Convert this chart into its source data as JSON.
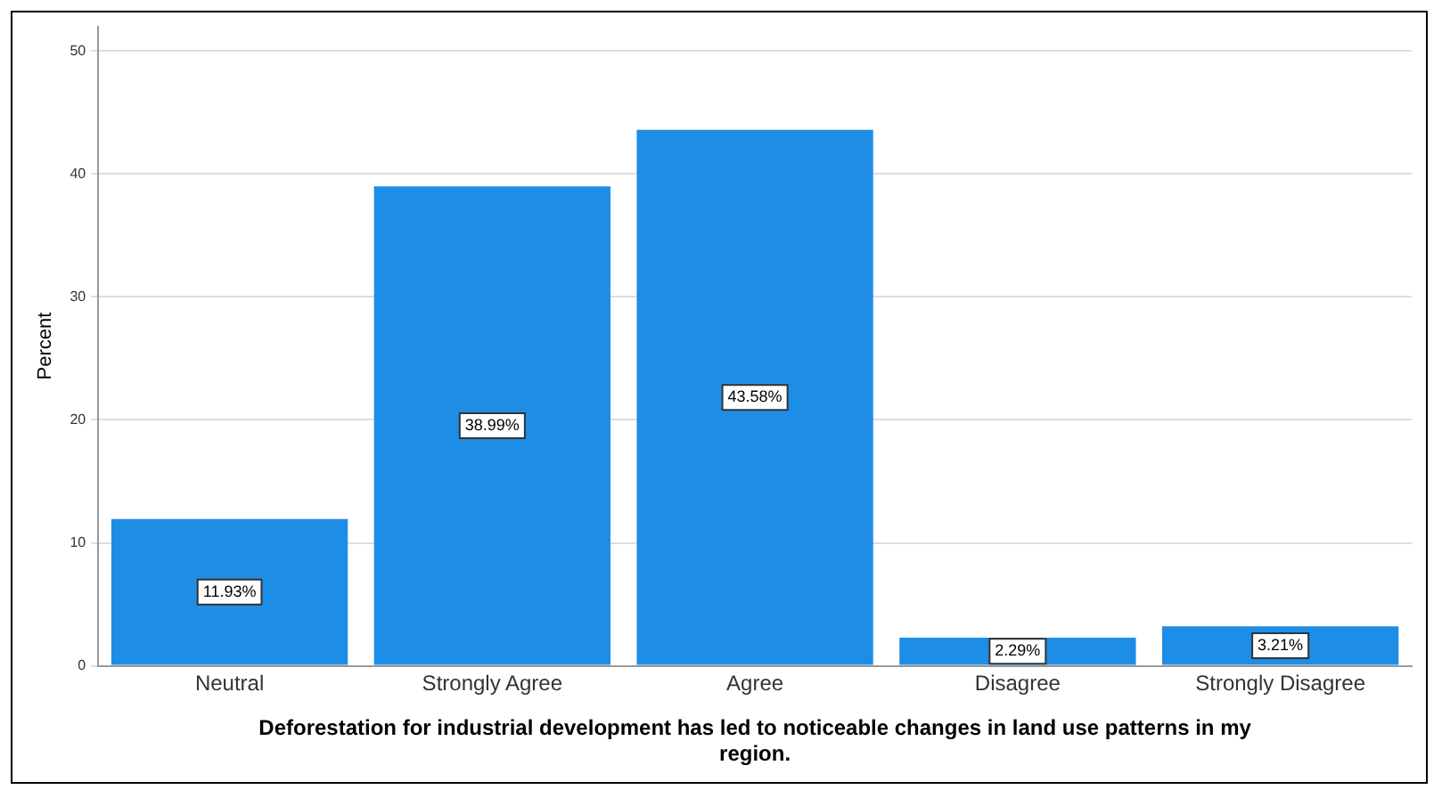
{
  "chart_data": {
    "type": "bar",
    "xlabel": "Deforestation for industrial development has led to noticeable changes in land use patterns in my region.",
    "ylabel": "Percent",
    "categories": [
      "Neutral",
      "Strongly Agree",
      "Agree",
      "Disagree",
      "Strongly Disagree"
    ],
    "values": [
      11.93,
      38.99,
      43.58,
      2.29,
      3.21
    ],
    "value_labels": [
      "11.93%",
      "38.99%",
      "43.58%",
      "2.29%",
      "3.21%"
    ],
    "color": "#1e8de6",
    "ylim": [
      0,
      52
    ],
    "yticks": [
      0,
      10,
      20,
      30,
      40,
      50
    ],
    "grid": "y",
    "legend": false
  }
}
